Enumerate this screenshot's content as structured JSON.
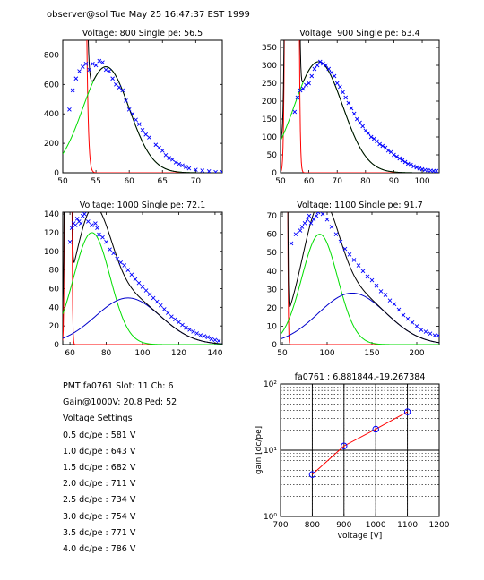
{
  "header": {
    "text": "observer@sol  Tue May 25 16:47:37 EST 1999"
  },
  "info": {
    "lines": [
      "PMT fa0761 Slot: 11 Ch: 6",
      "Gain@1000V: 20.8 Ped: 52",
      "Voltage Settings",
      "0.5 dc/pe : 581 V",
      "1.0 dc/pe : 643 V",
      "1.5 dc/pe : 682 V",
      "2.0 dc/pe : 711 V",
      "2.5 dc/pe : 734 V",
      "3.0 dc/pe : 754 V",
      "3.5 dc/pe : 771 V",
      "4.0 dc/pe : 786 V"
    ]
  },
  "colors": {
    "data": "#0000ff",
    "fit_total": "#000000",
    "gauss1": "#00dd00",
    "gauss2": "#0000cc",
    "pedestal": "#ff0000",
    "gain_line": "#ff0000"
  },
  "chart_data": [
    {
      "type": "scatter",
      "title": "Voltage: 800 Single pe: 56.5",
      "xlim": [
        50,
        74
      ],
      "ylim": [
        0,
        900
      ],
      "xticks": [
        50,
        55,
        60,
        65,
        70
      ],
      "yticks": [
        0,
        200,
        400,
        600,
        800
      ],
      "points": [
        [
          51,
          430
        ],
        [
          51.5,
          560
        ],
        [
          52,
          640
        ],
        [
          52.5,
          690
        ],
        [
          53,
          720
        ],
        [
          53.5,
          740
        ],
        [
          54,
          700
        ],
        [
          54.5,
          740
        ],
        [
          55,
          730
        ],
        [
          55.5,
          760
        ],
        [
          56,
          750
        ],
        [
          56.5,
          700
        ],
        [
          57,
          690
        ],
        [
          57.5,
          640
        ],
        [
          58,
          600
        ],
        [
          58.5,
          580
        ],
        [
          59,
          560
        ],
        [
          59.5,
          490
        ],
        [
          60,
          430
        ],
        [
          60.5,
          400
        ],
        [
          61,
          360
        ],
        [
          61.5,
          330
        ],
        [
          62,
          290
        ],
        [
          62.5,
          260
        ],
        [
          63,
          240
        ],
        [
          64,
          190
        ],
        [
          64.5,
          170
        ],
        [
          65,
          150
        ],
        [
          65.5,
          120
        ],
        [
          66,
          100
        ],
        [
          66.5,
          90
        ],
        [
          67,
          70
        ],
        [
          67.5,
          60
        ],
        [
          68,
          50
        ],
        [
          68.5,
          40
        ],
        [
          69,
          30
        ],
        [
          70,
          20
        ],
        [
          71,
          15
        ],
        [
          72,
          10
        ],
        [
          73,
          5
        ],
        [
          74,
          5
        ]
      ],
      "pedestal": {
        "mu": 51.6,
        "sigma": 0.7,
        "amp": 60000
      },
      "gauss1": {
        "mu": 56.5,
        "sigma": 3.5,
        "amp": 720
      },
      "gauss2": {
        "mu": 63,
        "sigma": 6,
        "amp": 0
      }
    },
    {
      "type": "scatter",
      "title": "Voltage: 900 Single pe: 63.4",
      "xlim": [
        50,
        106
      ],
      "ylim": [
        0,
        370
      ],
      "xticks": [
        50,
        60,
        70,
        80,
        90,
        100
      ],
      "yticks": [
        0,
        50,
        100,
        150,
        200,
        250,
        300,
        350
      ],
      "points": [
        [
          55,
          170
        ],
        [
          56,
          210
        ],
        [
          57,
          230
        ],
        [
          58,
          235
        ],
        [
          59,
          245
        ],
        [
          60,
          250
        ],
        [
          61,
          270
        ],
        [
          62,
          290
        ],
        [
          63,
          300
        ],
        [
          64,
          310
        ],
        [
          65,
          305
        ],
        [
          66,
          300
        ],
        [
          67,
          290
        ],
        [
          68,
          280
        ],
        [
          69,
          270
        ],
        [
          70,
          250
        ],
        [
          71,
          240
        ],
        [
          72,
          225
        ],
        [
          73,
          210
        ],
        [
          74,
          195
        ],
        [
          75,
          180
        ],
        [
          76,
          165
        ],
        [
          77,
          150
        ],
        [
          78,
          140
        ],
        [
          79,
          130
        ],
        [
          80,
          118
        ],
        [
          81,
          110
        ],
        [
          82,
          100
        ],
        [
          83,
          95
        ],
        [
          84,
          88
        ],
        [
          85,
          80
        ],
        [
          86,
          75
        ],
        [
          87,
          70
        ],
        [
          88,
          62
        ],
        [
          89,
          58
        ],
        [
          90,
          50
        ],
        [
          91,
          45
        ],
        [
          92,
          40
        ],
        [
          93,
          35
        ],
        [
          94,
          30
        ],
        [
          95,
          25
        ],
        [
          96,
          22
        ],
        [
          97,
          18
        ],
        [
          98,
          15
        ],
        [
          99,
          12
        ],
        [
          100,
          10
        ],
        [
          101,
          8
        ],
        [
          102,
          7
        ],
        [
          103,
          6
        ],
        [
          104,
          5
        ],
        [
          105,
          5
        ]
      ],
      "pedestal": {
        "mu": 54,
        "sigma": 0.9,
        "amp": 30000
      },
      "gauss1": {
        "mu": 63.4,
        "sigma": 8.5,
        "amp": 310
      },
      "gauss2": {
        "mu": 75,
        "sigma": 14,
        "amp": 0
      }
    },
    {
      "type": "scatter",
      "title": "Voltage: 1000 Single pe: 72.1",
      "xlim": [
        56,
        144
      ],
      "ylim": [
        0,
        142
      ],
      "xticks": [
        60,
        80,
        100,
        120,
        140
      ],
      "yticks": [
        0,
        20,
        40,
        60,
        80,
        100,
        120,
        140
      ],
      "points": [
        [
          60,
          110
        ],
        [
          61,
          125
        ],
        [
          62,
          130
        ],
        [
          63,
          128
        ],
        [
          64,
          135
        ],
        [
          65,
          132
        ],
        [
          66,
          130
        ],
        [
          67,
          138
        ],
        [
          68,
          140
        ],
        [
          70,
          132
        ],
        [
          72,
          128
        ],
        [
          74,
          130
        ],
        [
          75,
          125
        ],
        [
          76,
          118
        ],
        [
          78,
          115
        ],
        [
          80,
          110
        ],
        [
          82,
          102
        ],
        [
          84,
          98
        ],
        [
          86,
          92
        ],
        [
          88,
          88
        ],
        [
          90,
          85
        ],
        [
          92,
          80
        ],
        [
          94,
          75
        ],
        [
          96,
          70
        ],
        [
          98,
          66
        ],
        [
          100,
          62
        ],
        [
          102,
          58
        ],
        [
          104,
          54
        ],
        [
          106,
          50
        ],
        [
          108,
          46
        ],
        [
          110,
          42
        ],
        [
          112,
          38
        ],
        [
          114,
          34
        ],
        [
          116,
          30
        ],
        [
          118,
          27
        ],
        [
          120,
          24
        ],
        [
          122,
          21
        ],
        [
          124,
          18
        ],
        [
          126,
          16
        ],
        [
          128,
          14
        ],
        [
          130,
          12
        ],
        [
          132,
          10
        ],
        [
          134,
          9
        ],
        [
          136,
          8
        ],
        [
          138,
          6
        ],
        [
          140,
          5
        ],
        [
          142,
          4
        ]
      ],
      "pedestal": {
        "mu": 59,
        "sigma": 0.8,
        "amp": 5000
      },
      "gauss1": {
        "mu": 72.1,
        "sigma": 10,
        "amp": 120
      },
      "gauss2": {
        "mu": 92,
        "sigma": 18,
        "amp": 50
      }
    },
    {
      "type": "scatter",
      "title": "Voltage: 1100 Single pe: 91.7",
      "xlim": [
        48,
        225
      ],
      "ylim": [
        0,
        72
      ],
      "xticks": [
        50,
        100,
        150,
        200
      ],
      "yticks": [
        0,
        10,
        20,
        30,
        40,
        50,
        60,
        70
      ],
      "points": [
        [
          60,
          55
        ],
        [
          65,
          60
        ],
        [
          70,
          62
        ],
        [
          72,
          64
        ],
        [
          75,
          66
        ],
        [
          78,
          68
        ],
        [
          80,
          70
        ],
        [
          82,
          66
        ],
        [
          85,
          68
        ],
        [
          88,
          70
        ],
        [
          90,
          72
        ],
        [
          95,
          71
        ],
        [
          100,
          68
        ],
        [
          105,
          64
        ],
        [
          110,
          60
        ],
        [
          115,
          56
        ],
        [
          120,
          52
        ],
        [
          125,
          49
        ],
        [
          130,
          46
        ],
        [
          135,
          43
        ],
        [
          140,
          40
        ],
        [
          145,
          37
        ],
        [
          150,
          35
        ],
        [
          155,
          32
        ],
        [
          160,
          29
        ],
        [
          165,
          27
        ],
        [
          170,
          24
        ],
        [
          175,
          22
        ],
        [
          180,
          19
        ],
        [
          185,
          16
        ],
        [
          190,
          14
        ],
        [
          195,
          12
        ],
        [
          200,
          10
        ],
        [
          205,
          8
        ],
        [
          210,
          7
        ],
        [
          215,
          6
        ],
        [
          220,
          5
        ],
        [
          224,
          5
        ]
      ],
      "pedestal": {
        "mu": 52,
        "sigma": 1.5,
        "amp": 3000
      },
      "gauss1": {
        "mu": 91.7,
        "sigma": 20,
        "amp": 60
      },
      "gauss2": {
        "mu": 128,
        "sigma": 38,
        "amp": 28
      }
    },
    {
      "type": "line",
      "title": "fa0761 : 6.881844,-19.267384",
      "xlabel": "voltage [V]",
      "ylabel": "gain [dc/pe]",
      "xlim": [
        700,
        1200
      ],
      "ylim": [
        1,
        100
      ],
      "yscale": "log",
      "xticks": [
        700,
        800,
        900,
        1000,
        1100,
        1200
      ],
      "yticks": [
        1,
        10,
        100
      ],
      "ytick_labels": [
        "10⁰",
        "10¹",
        "10²"
      ],
      "grid": true,
      "x": [
        800,
        900,
        1000,
        1100
      ],
      "y": [
        4.3,
        11.6,
        20.8,
        38
      ]
    }
  ]
}
